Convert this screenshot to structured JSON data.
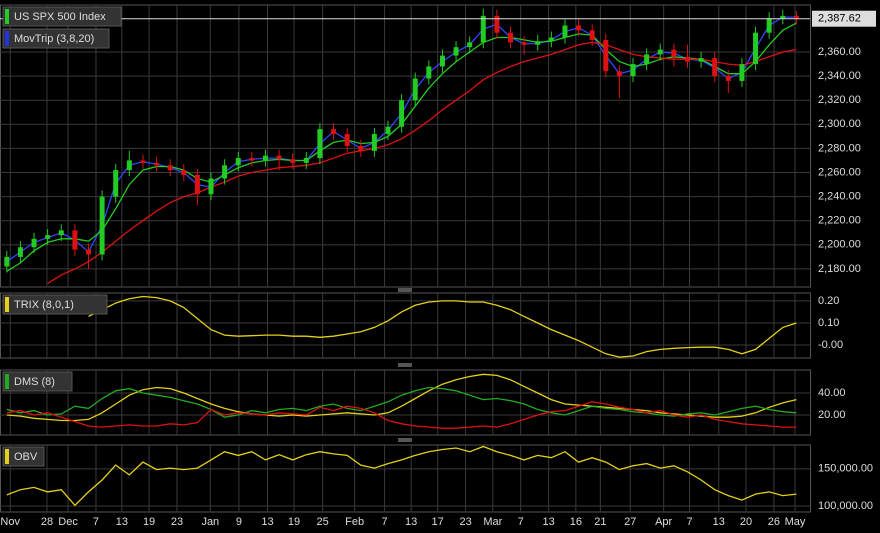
{
  "chart_data": [
    {
      "type": "candlestick",
      "name": "US SPX 500 Index",
      "color": "#22cc22",
      "up_color": "#22cc22",
      "down_color": "#dd1111",
      "x": [
        0,
        2,
        4,
        6,
        8,
        10,
        12,
        14,
        16,
        18,
        20,
        22,
        24,
        26,
        28,
        30,
        32,
        34,
        36,
        38,
        40,
        42,
        44,
        46,
        48,
        50,
        52,
        54,
        56,
        58,
        60,
        62,
        64,
        66,
        68,
        70,
        72,
        74,
        76,
        78,
        80,
        82,
        84,
        86,
        88,
        90,
        92,
        94,
        96,
        98,
        100,
        102,
        104,
        106,
        108,
        110,
        112,
        114,
        116
      ],
      "open": [
        2182,
        2190,
        2198,
        2205,
        2208,
        2212,
        2196,
        2192,
        2240,
        2262,
        2270,
        2268,
        2266,
        2262,
        2258,
        2242,
        2255,
        2266,
        2272,
        2270,
        2274,
        2271,
        2268,
        2272,
        2296,
        2292,
        2282,
        2278,
        2292,
        2298,
        2320,
        2338,
        2348,
        2357,
        2364,
        2368,
        2390,
        2376,
        2368,
        2366,
        2369,
        2372,
        2382,
        2378,
        2370,
        2344,
        2340,
        2350,
        2358,
        2362,
        2356,
        2352,
        2355,
        2340,
        2336,
        2350,
        2376,
        2388,
        2390
      ],
      "high": [
        2195,
        2203,
        2210,
        2213,
        2217,
        2217,
        2201,
        2245,
        2267,
        2278,
        2275,
        2273,
        2271,
        2267,
        2263,
        2260,
        2271,
        2277,
        2277,
        2279,
        2279,
        2276,
        2277,
        2301,
        2301,
        2297,
        2287,
        2297,
        2303,
        2325,
        2343,
        2353,
        2362,
        2369,
        2373,
        2396,
        2395,
        2381,
        2373,
        2374,
        2377,
        2387,
        2387,
        2383,
        2375,
        2349,
        2355,
        2363,
        2367,
        2367,
        2366,
        2360,
        2360,
        2345,
        2355,
        2381,
        2393,
        2395,
        2394
      ],
      "low": [
        2177,
        2185,
        2193,
        2200,
        2203,
        2191,
        2180,
        2187,
        2235,
        2257,
        2263,
        2261,
        2257,
        2253,
        2233,
        2237,
        2250,
        2261,
        2265,
        2265,
        2262,
        2263,
        2263,
        2267,
        2287,
        2277,
        2273,
        2273,
        2287,
        2293,
        2315,
        2333,
        2343,
        2352,
        2359,
        2363,
        2371,
        2363,
        2358,
        2361,
        2364,
        2367,
        2373,
        2365,
        2339,
        2322,
        2335,
        2345,
        2353,
        2348,
        2347,
        2347,
        2335,
        2326,
        2331,
        2345,
        2371,
        2383,
        2383
      ],
      "close": [
        2190,
        2198,
        2205,
        2208,
        2212,
        2196,
        2192,
        2240,
        2262,
        2270,
        2268,
        2266,
        2262,
        2258,
        2242,
        2255,
        2266,
        2272,
        2270,
        2274,
        2271,
        2268,
        2272,
        2296,
        2292,
        2282,
        2278,
        2292,
        2298,
        2320,
        2338,
        2348,
        2357,
        2364,
        2368,
        2390,
        2376,
        2368,
        2366,
        2369,
        2372,
        2382,
        2378,
        2370,
        2344,
        2340,
        2350,
        2358,
        2362,
        2356,
        2352,
        2355,
        2340,
        2336,
        2350,
        2376,
        2388,
        2390,
        2388
      ],
      "overlay": {
        "name": "MovTrip (3,8,20)",
        "color": "#2233dd",
        "series": [
          {
            "color": "#3344ff",
            "values": [
              2186,
              2194,
              2202,
              2206,
              2210,
              2204,
              2194,
              2216,
              2251,
              2266,
              2269,
              2267,
              2264,
              2260,
              2250,
              2248,
              2260,
              2269,
              2271,
              2272,
              2272,
              2270,
              2270,
              2284,
              2294,
              2287,
              2280,
              2285,
              2295,
              2309,
              2329,
              2343,
              2352,
              2360,
              2366,
              2379,
              2383,
              2372,
              2367,
              2367,
              2370,
              2377,
              2380,
              2374,
              2357,
              2342,
              2345,
              2354,
              2360,
              2359,
              2354,
              2353,
              2347,
              2338,
              2343,
              2363,
              2382,
              2389,
              2389
            ]
          },
          {
            "color": "#22cc22",
            "values": [
              2178,
              2185,
              2195,
              2202,
              2205,
              2205,
              2203,
              2212,
              2230,
              2250,
              2262,
              2265,
              2265,
              2262,
              2255,
              2252,
              2258,
              2264,
              2268,
              2270,
              2271,
              2270,
              2270,
              2278,
              2285,
              2287,
              2284,
              2285,
              2290,
              2300,
              2315,
              2330,
              2342,
              2352,
              2360,
              2368,
              2372,
              2372,
              2370,
              2368,
              2369,
              2372,
              2375,
              2374,
              2362,
              2352,
              2348,
              2350,
              2354,
              2356,
              2355,
              2354,
              2348,
              2342,
              2342,
              2352,
              2366,
              2378,
              2384
            ]
          },
          {
            "color": "#dd1111",
            "values": [
              null,
              null,
              null,
              2168,
              2175,
              2180,
              2186,
              2194,
              2203,
              2212,
              2220,
              2228,
              2235,
              2240,
              2243,
              2248,
              2252,
              2257,
              2260,
              2262,
              2264,
              2265,
              2266,
              2268,
              2272,
              2276,
              2278,
              2280,
              2283,
              2288,
              2295,
              2303,
              2312,
              2320,
              2328,
              2337,
              2343,
              2348,
              2352,
              2355,
              2358,
              2362,
              2366,
              2368,
              2366,
              2362,
              2358,
              2356,
              2355,
              2354,
              2354,
              2354,
              2352,
              2350,
              2349,
              2352,
              2356,
              2360,
              2362
            ]
          }
        ]
      },
      "last_price": {
        "value": 2387.62,
        "label": "2,387.62"
      },
      "xlim": [
        -1,
        118
      ],
      "xticks": [
        {
          "value": 0.5,
          "label": "Nov"
        },
        {
          "value": 5.9,
          "label": "28"
        },
        {
          "value": 9,
          "label": "Dec"
        },
        {
          "value": 13.1,
          "label": "7"
        },
        {
          "value": 16.9,
          "label": "13"
        },
        {
          "value": 20.9,
          "label": "19"
        },
        {
          "value": 25,
          "label": "23"
        },
        {
          "value": 29.9,
          "label": "Jan"
        },
        {
          "value": 34.1,
          "label": "9"
        },
        {
          "value": 38.3,
          "label": "13"
        },
        {
          "value": 42.2,
          "label": "19"
        },
        {
          "value": 46.4,
          "label": "25"
        },
        {
          "value": 51.1,
          "label": "Feb"
        },
        {
          "value": 55.5,
          "label": "7"
        },
        {
          "value": 59.4,
          "label": "13"
        },
        {
          "value": 63.3,
          "label": "17"
        },
        {
          "value": 67.4,
          "label": "23"
        },
        {
          "value": 71.4,
          "label": "Mar"
        },
        {
          "value": 75.5,
          "label": "7"
        },
        {
          "value": 79.6,
          "label": "13"
        },
        {
          "value": 83.6,
          "label": "16"
        },
        {
          "value": 87.2,
          "label": "21"
        },
        {
          "value": 91.6,
          "label": "27"
        },
        {
          "value": 96.5,
          "label": "Apr"
        },
        {
          "value": 100.3,
          "label": "7"
        },
        {
          "value": 104.6,
          "label": "13"
        },
        {
          "value": 108.6,
          "label": "20"
        },
        {
          "value": 112.7,
          "label": "26"
        },
        {
          "value": 115.8,
          "label": "May"
        }
      ],
      "ylim": [
        2165,
        2399
      ],
      "yticks": [
        {
          "value": 2180,
          "label": "2,180.00"
        },
        {
          "value": 2200,
          "label": "2,200.00"
        },
        {
          "value": 2220,
          "label": "2,220.00"
        },
        {
          "value": 2240,
          "label": "2,240.00"
        },
        {
          "value": 2260,
          "label": "2,260.00"
        },
        {
          "value": 2280,
          "label": "2,280.00"
        },
        {
          "value": 2300,
          "label": "2,300.00"
        },
        {
          "value": 2320,
          "label": "2,320.00"
        },
        {
          "value": 2340,
          "label": "2,340.00"
        },
        {
          "value": 2360,
          "label": "2,360.00"
        }
      ]
    },
    {
      "type": "line",
      "name": "TRIX (8,0,1)",
      "color": "#e5d019",
      "series": [
        {
          "color": "#e5d019",
          "values": [
            null,
            null,
            null,
            null,
            null,
            null,
            0.13,
            0.16,
            0.19,
            0.21,
            0.22,
            0.215,
            0.2,
            0.17,
            0.12,
            0.07,
            0.045,
            0.04,
            0.042,
            0.045,
            0.045,
            0.04,
            0.04,
            0.035,
            0.04,
            0.05,
            0.06,
            0.08,
            0.11,
            0.15,
            0.18,
            0.195,
            0.2,
            0.2,
            0.195,
            0.195,
            0.18,
            0.16,
            0.13,
            0.1,
            0.07,
            0.045,
            0.02,
            -0.01,
            -0.04,
            -0.055,
            -0.05,
            -0.03,
            -0.02,
            -0.015,
            -0.012,
            -0.01,
            -0.01,
            -0.02,
            -0.04,
            -0.02,
            0.03,
            0.08,
            0.1
          ]
        }
      ],
      "ylim": [
        -0.059,
        0.236
      ],
      "yticks": [
        {
          "value": 0,
          "label": "-0.00"
        },
        {
          "value": 0.1,
          "label": "0.10"
        },
        {
          "value": 0.2,
          "label": "0.20"
        }
      ]
    },
    {
      "type": "line",
      "name": "DMS (8)",
      "color": "#22aa22",
      "series": [
        {
          "color": "#e5d019",
          "values": [
            20,
            19,
            17,
            16,
            15,
            15,
            16,
            22,
            30,
            38,
            43,
            45,
            44,
            40,
            35,
            30,
            26,
            23,
            21,
            20,
            19,
            20,
            19,
            20,
            21,
            22,
            21,
            20,
            22,
            28,
            35,
            42,
            48,
            52,
            55,
            57,
            56,
            52,
            46,
            40,
            34,
            30,
            29,
            28,
            27,
            26,
            25,
            24,
            22,
            21,
            20,
            19,
            18,
            18,
            19,
            22,
            27,
            31,
            34
          ]
        },
        {
          "color": "#22aa22",
          "values": [
            25,
            22,
            24,
            20,
            21,
            28,
            26,
            35,
            42,
            44,
            40,
            38,
            36,
            33,
            30,
            25,
            18,
            20,
            24,
            22,
            25,
            26,
            24,
            28,
            30,
            26,
            24,
            28,
            32,
            38,
            42,
            45,
            44,
            42,
            38,
            34,
            35,
            33,
            30,
            25,
            22,
            20,
            24,
            28,
            26,
            25,
            23,
            22,
            20,
            19,
            21,
            22,
            20,
            23,
            26,
            28,
            25,
            23,
            22
          ]
        },
        {
          "color": "#dd1111",
          "values": [
            22,
            24,
            20,
            22,
            18,
            14,
            10,
            9,
            10,
            11,
            10,
            10,
            12,
            11,
            13,
            25,
            20,
            22,
            21,
            20,
            22,
            21,
            20,
            27,
            24,
            28,
            26,
            22,
            15,
            12,
            10,
            9,
            8,
            8,
            9,
            10,
            9,
            12,
            16,
            20,
            23,
            24,
            28,
            32,
            30,
            27,
            25,
            22,
            24,
            20,
            18,
            20,
            16,
            14,
            12,
            11,
            10,
            9,
            9
          ]
        }
      ],
      "ylim": [
        1.8,
        60.9
      ],
      "yticks": [
        {
          "value": 20,
          "label": "20.00"
        },
        {
          "value": 40,
          "label": "40.00"
        }
      ]
    },
    {
      "type": "line",
      "name": "OBV",
      "color": "#e5d019",
      "series": [
        {
          "color": "#e5d019",
          "values": [
            115000,
            122000,
            125000,
            119000,
            122000,
            101000,
            119000,
            135000,
            155000,
            142000,
            159000,
            149000,
            151000,
            149000,
            151000,
            162000,
            173000,
            168000,
            173000,
            162000,
            169000,
            162000,
            169000,
            173000,
            170000,
            168000,
            155000,
            151000,
            157000,
            162000,
            168000,
            173000,
            176000,
            178000,
            173000,
            180000,
            173000,
            168000,
            162000,
            168000,
            165000,
            173000,
            159000,
            165000,
            159000,
            149000,
            154000,
            157000,
            151000,
            154000,
            146000,
            135000,
            122000,
            114000,
            108000,
            116000,
            119000,
            114000,
            116000
          ]
        }
      ],
      "ylim": [
        92000,
        182000
      ],
      "yticks": [
        {
          "value": 100000,
          "label": "100,000.00"
        },
        {
          "value": 150000,
          "label": "150,000.00"
        }
      ]
    }
  ]
}
